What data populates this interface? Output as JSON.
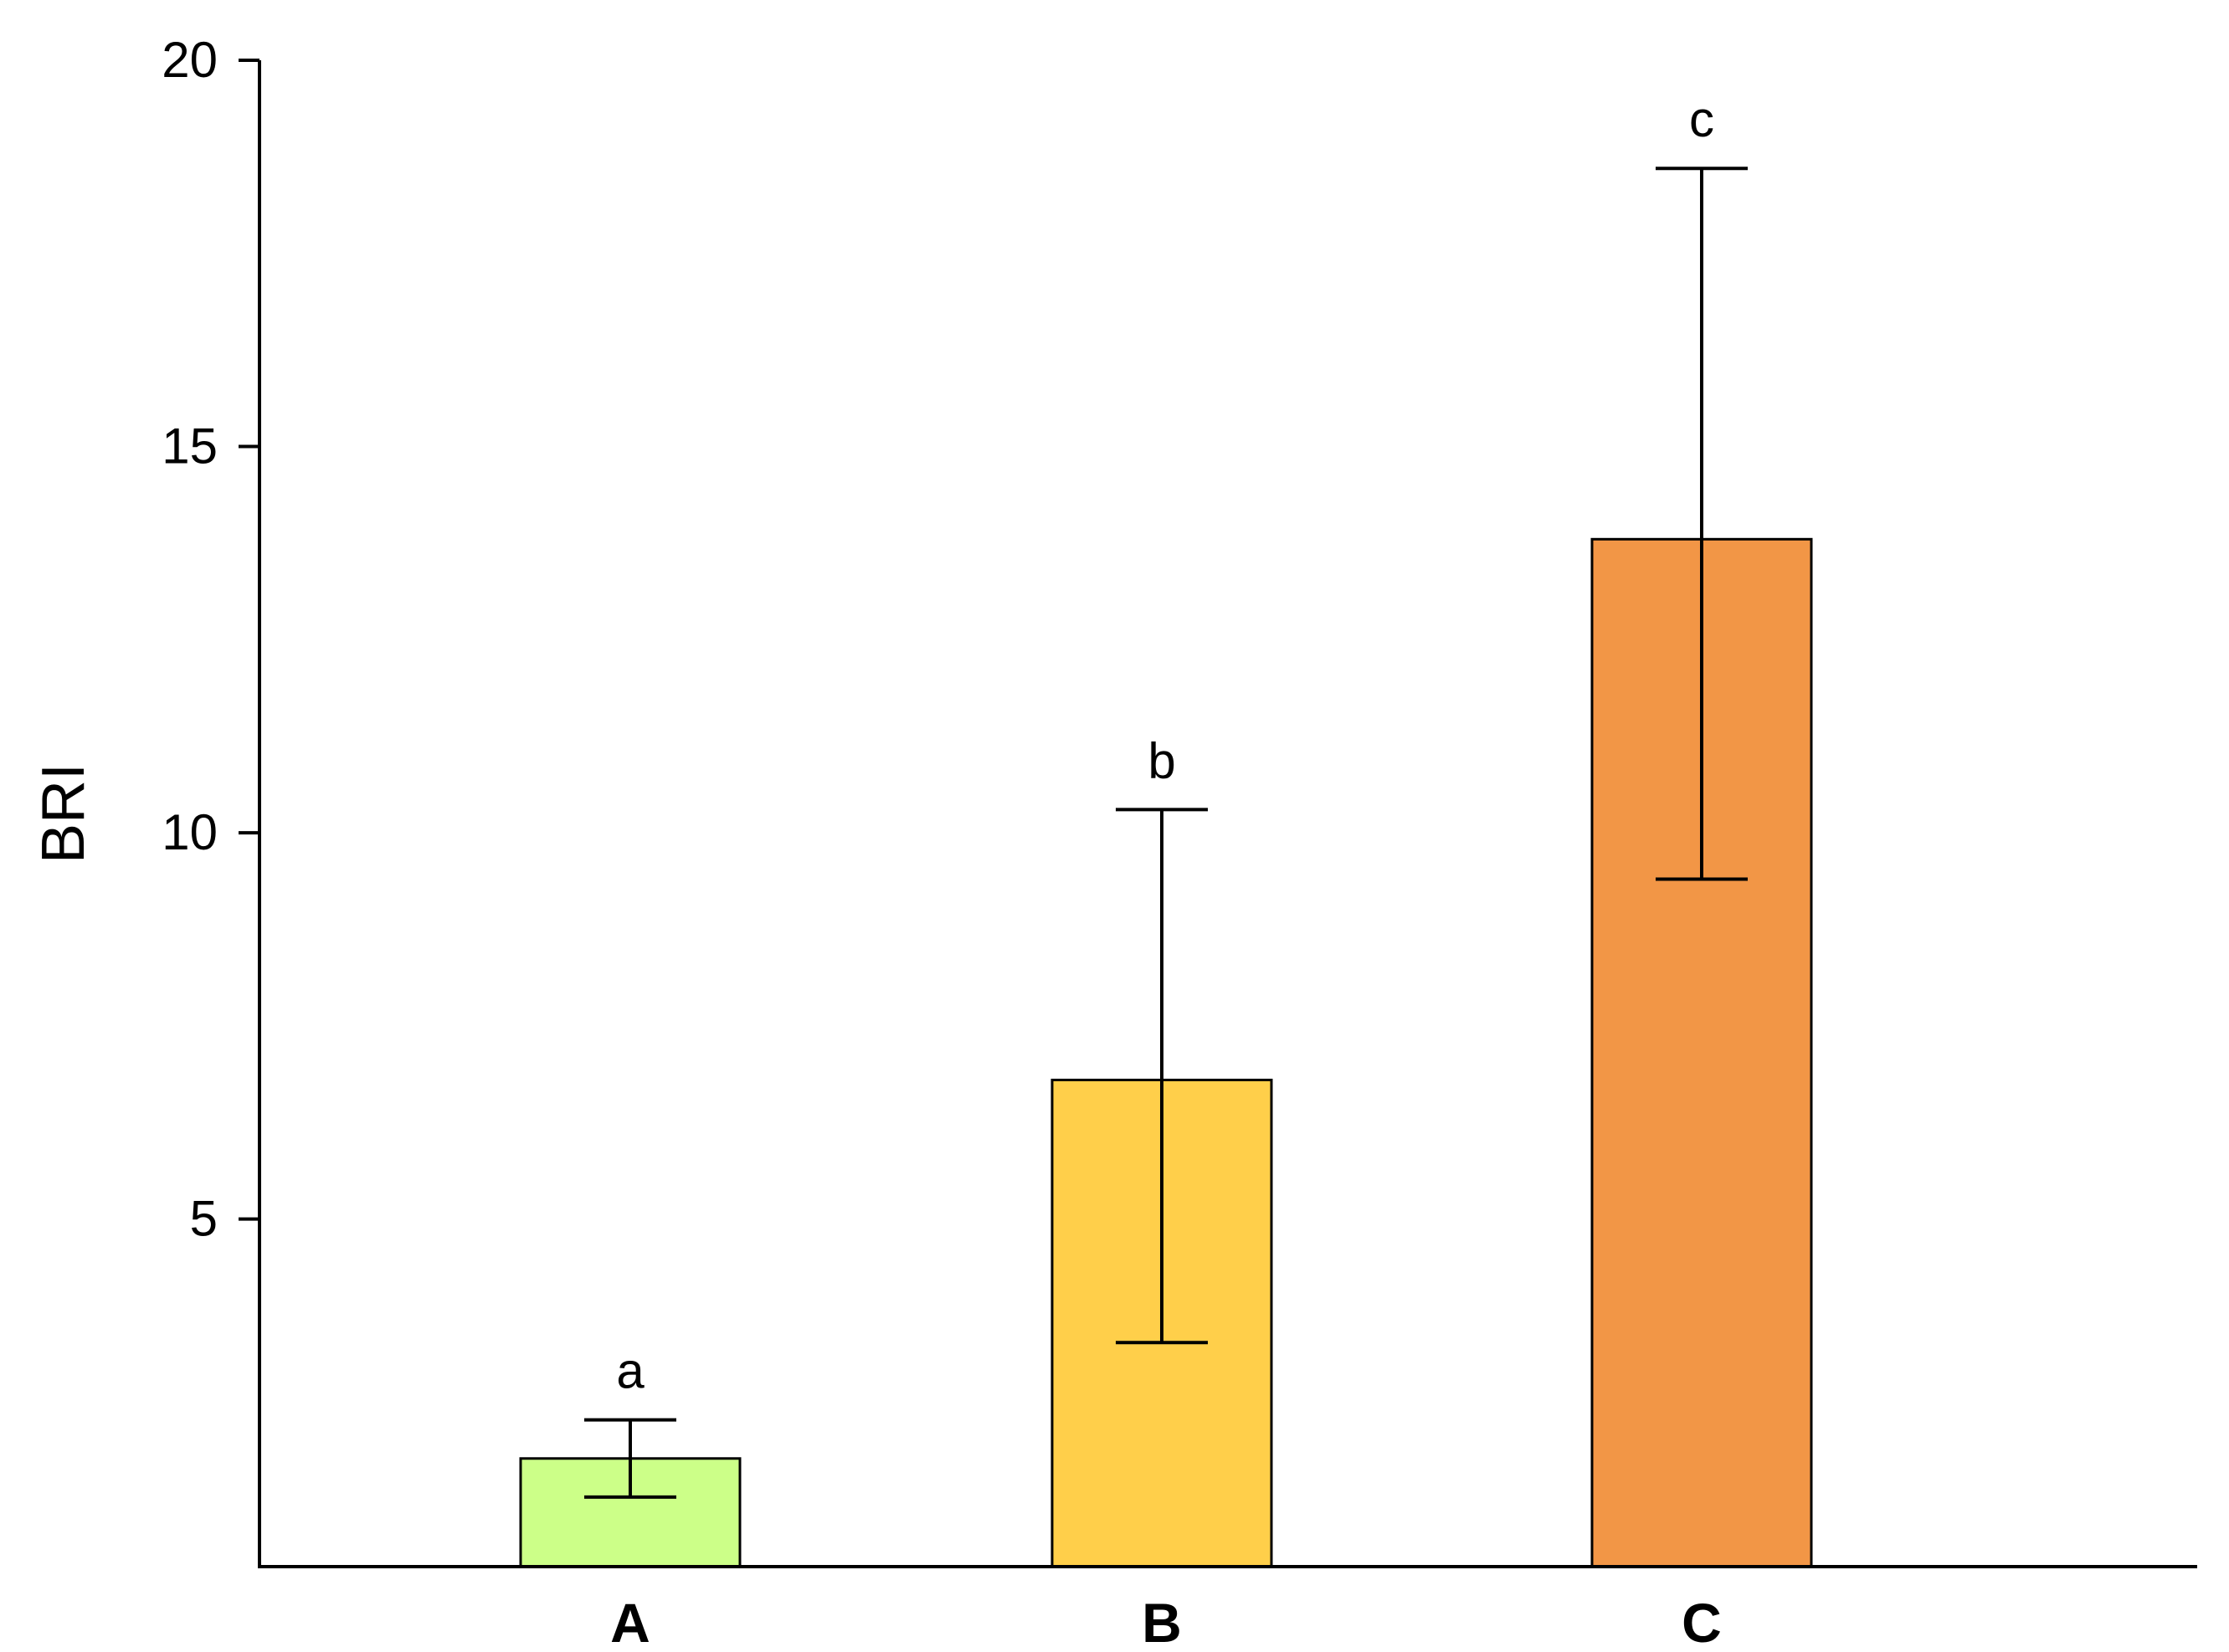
{
  "chart_data": {
    "type": "bar",
    "title": "",
    "xlabel": "",
    "ylabel": "BRI",
    "ylim": [
      0.5,
      20
    ],
    "yticks": [
      5,
      10,
      15,
      20
    ],
    "grid": false,
    "categories": [
      "A",
      "B",
      "C"
    ],
    "values": [
      1.9,
      6.8,
      13.8
    ],
    "error_low": [
      1.4,
      3.4,
      9.4
    ],
    "error_high": [
      2.4,
      10.3,
      18.6
    ],
    "significance": [
      "a",
      "b",
      "c"
    ],
    "colors": [
      "#CCFF88",
      "#FFCF4A",
      "#F29646"
    ]
  }
}
